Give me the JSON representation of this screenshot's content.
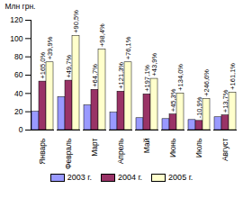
{
  "chart_data": {
    "type": "bar",
    "y_label": "Млн грн.",
    "categories": [
      "Январь",
      "Февраль",
      "Март",
      "Апрель",
      "Май",
      "Июнь",
      "Июль",
      "Август"
    ],
    "series": [
      {
        "name": "2003 г.",
        "color": "#9999ff",
        "values": [
          20,
          36,
          27,
          19,
          13,
          12,
          11,
          14
        ]
      },
      {
        "name": "2004 г.",
        "color": "#993366",
        "values": [
          53,
          54,
          44,
          42,
          39,
          17,
          10,
          16
        ]
      },
      {
        "name": "2005 г.",
        "color": "#ffffcc",
        "values": [
          74,
          103,
          88,
          74,
          56,
          40,
          34,
          41
        ]
      }
    ],
    "ylim": [
      0,
      120
    ],
    "yticks": [
      0,
      20,
      40,
      60,
      80,
      100,
      120
    ],
    "legend": "bottom",
    "annotations": [
      {
        "category": "Январь",
        "series": "2004 г.",
        "text": "+165,0%"
      },
      {
        "category": "Январь",
        "series": "2005 г.",
        "text": "+39,9%"
      },
      {
        "category": "Февраль",
        "series": "2004 г.",
        "text": "+49,7%"
      },
      {
        "category": "Февраль",
        "series": "2005 г.",
        "text": "+90,5%"
      },
      {
        "category": "Март",
        "series": "2004 г.",
        "text": "+64,7%"
      },
      {
        "category": "Март",
        "series": "2005 г.",
        "text": "+98,4%"
      },
      {
        "category": "Апрель",
        "series": "2004 г.",
        "text": "+121,3%"
      },
      {
        "category": "Апрель",
        "series": "2005 г.",
        "text": "+76,1%"
      },
      {
        "category": "Май",
        "series": "2004 г.",
        "text": "+197,1%"
      },
      {
        "category": "Май",
        "series": "2005 г.",
        "text": "+43,9%"
      },
      {
        "category": "Июнь",
        "series": "2004 г.",
        "text": "+45,3%"
      },
      {
        "category": "Июнь",
        "series": "2005 г.",
        "text": "+134,0%"
      },
      {
        "category": "Июль",
        "series": "2004 г.",
        "text": "-10,9%"
      },
      {
        "category": "Июль",
        "series": "2005 г.",
        "text": "+246,6%"
      },
      {
        "category": "Август",
        "series": "2004 г.",
        "text": "+13,7%"
      },
      {
        "category": "Август",
        "series": "2005 г.",
        "text": "+161,1%"
      }
    ]
  }
}
